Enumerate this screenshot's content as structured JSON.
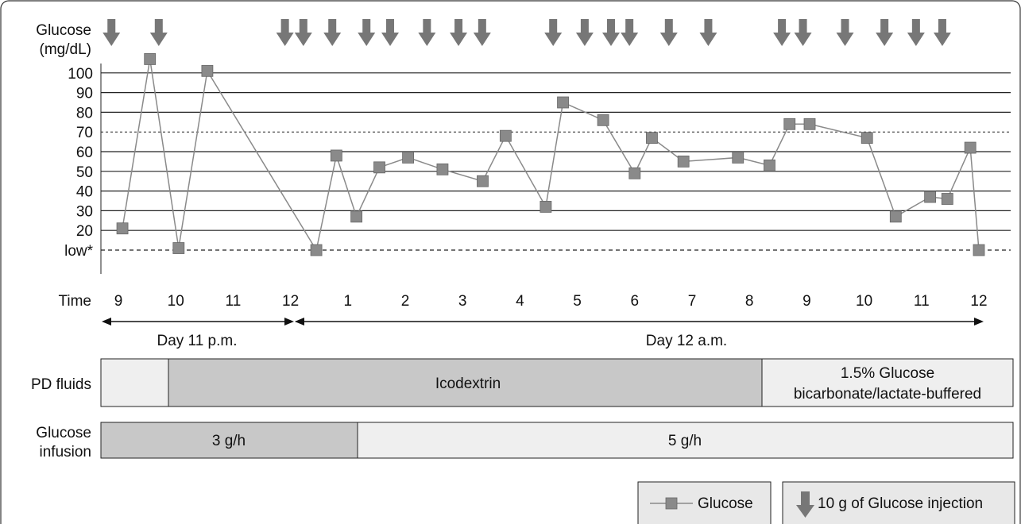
{
  "chart_data": {
    "type": "line",
    "ylabel": [
      "Glucose",
      "(mg/dL)"
    ],
    "xlabel": "Time",
    "y_ticks": [
      {
        "label": "100",
        "value": 100
      },
      {
        "label": "90",
        "value": 90
      },
      {
        "label": "80",
        "value": 80
      },
      {
        "label": "70",
        "value": 70
      },
      {
        "label": "60",
        "value": 60
      },
      {
        "label": "50",
        "value": 50
      },
      {
        "label": "40",
        "value": 40
      },
      {
        "label": "30",
        "value": 30
      },
      {
        "label": "20",
        "value": 20
      },
      {
        "label": "low*",
        "value": 10
      }
    ],
    "ylim": [
      -2,
      110
    ],
    "reference_line_dotted": 70,
    "x_tick_labels": [
      "9",
      "10",
      "11",
      "12",
      "1",
      "2",
      "3",
      "4",
      "5",
      "6",
      "7",
      "8",
      "9",
      "10",
      "11",
      "12"
    ],
    "x_unit": "hours from 9 p.m. (Day 11)",
    "xlim": [
      0,
      15
    ],
    "series": [
      {
        "name": "Glucose",
        "x": [
          0.07,
          0.55,
          1.05,
          1.55,
          3.45,
          3.8,
          4.15,
          4.55,
          5.05,
          5.65,
          6.35,
          6.75,
          7.45,
          7.75,
          8.45,
          9.0,
          9.3,
          9.85,
          10.8,
          11.35,
          11.7,
          12.05,
          13.05,
          13.55,
          14.15,
          14.45,
          14.85,
          15.0
        ],
        "y": [
          21,
          107,
          11,
          101,
          10,
          58,
          27,
          52,
          57,
          51,
          45,
          68,
          32,
          85,
          76,
          49,
          67,
          55,
          57,
          53,
          74,
          74,
          67,
          27,
          37,
          36,
          62,
          10
        ]
      }
    ],
    "injections_x": [
      0.2,
      1.1,
      3.5,
      3.85,
      4.4,
      5.05,
      5.5,
      6.2,
      6.8,
      7.25,
      8.6,
      9.2,
      9.7,
      10.05,
      10.8,
      11.55,
      12.95,
      13.35,
      14.15,
      14.9,
      15.5,
      16.0
    ],
    "day_labels": [
      {
        "text": "Day 11 p.m."
      },
      {
        "text": "Day 12 a.m."
      }
    ],
    "pd_fluids": {
      "label": "PD fluids",
      "segments": [
        {
          "text": "",
          "from": 0.0,
          "to": 1.3
        },
        {
          "text": "Icodextrin",
          "from": 1.3,
          "to": 12.3
        },
        {
          "text": "1.5% Glucose",
          "text2": "bicarbonate/lactate-buffered",
          "from": 12.3,
          "to": 17.3
        }
      ]
    },
    "glucose_infusion": {
      "label": [
        "Glucose",
        "infusion"
      ],
      "segments": [
        {
          "text": "3 g/h",
          "from": 0.0,
          "to": 4.8
        },
        {
          "text": "5 g/h",
          "from": 4.8,
          "to": 17.3
        }
      ]
    },
    "legend": [
      {
        "label": "Glucose",
        "marker": "line-square"
      },
      {
        "label": "10 g of Glucose injection",
        "marker": "down-arrow"
      }
    ],
    "colors": {
      "marker": "#8a8a8a",
      "arrow": "#777777",
      "dark_band": "#c8c8c8",
      "light_band": "#efefef",
      "legend_bg": "#e8e8e8"
    }
  }
}
